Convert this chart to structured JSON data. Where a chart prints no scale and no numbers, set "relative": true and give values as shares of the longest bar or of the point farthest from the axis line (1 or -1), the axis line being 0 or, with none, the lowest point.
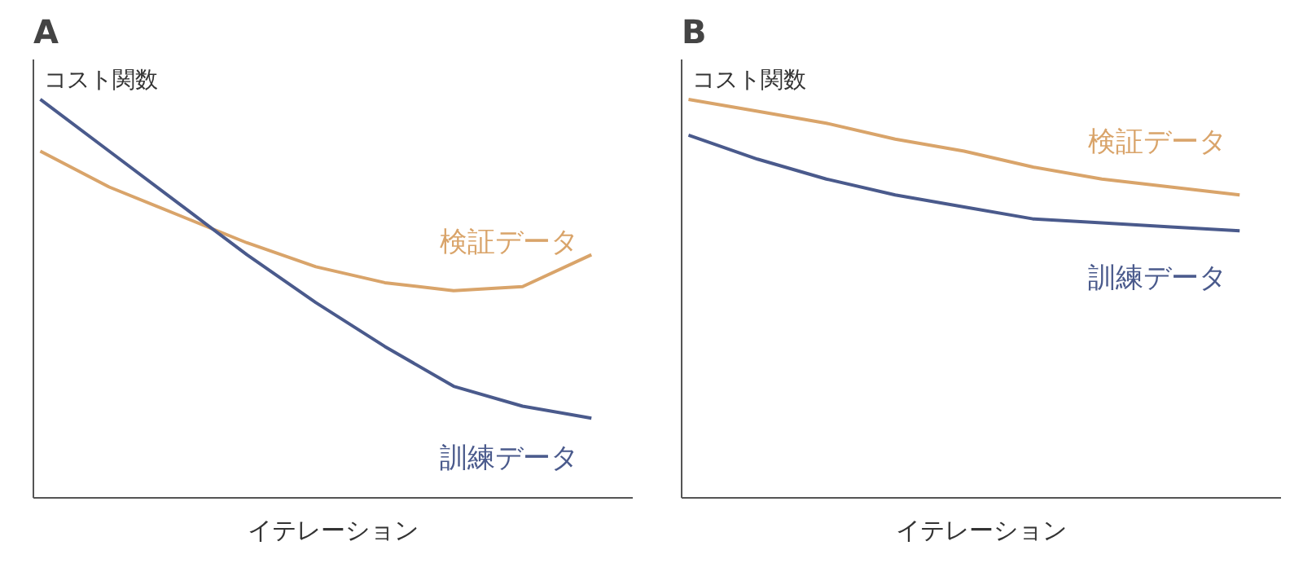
{
  "chart_data": [
    {
      "type": "line",
      "title": "A",
      "ylabel": "コスト関数",
      "xlabel": "イテレーション",
      "relative": true,
      "legend": false,
      "grid": false,
      "categories": [
        null,
        null,
        null,
        null,
        null,
        null,
        null,
        null,
        null
      ],
      "series": [
        {
          "name": "検証データ",
          "color": "#d9a46a",
          "values": [
            0.87,
            0.78,
            0.71,
            0.64,
            0.58,
            0.54,
            0.52,
            0.53,
            0.61
          ]
        },
        {
          "name": "訓練データ",
          "color": "#4a5a8c",
          "values": [
            1,
            0.87,
            0.74,
            0.61,
            0.49,
            0.38,
            0.28,
            0.23,
            0.2
          ]
        }
      ]
    },
    {
      "type": "line",
      "title": "B",
      "ylabel": "コスト関数",
      "xlabel": "イテレーション",
      "relative": true,
      "legend": false,
      "grid": false,
      "categories": [
        null,
        null,
        null,
        null,
        null,
        null,
        null,
        null,
        null
      ],
      "series": [
        {
          "name": "検証データ",
          "color": "#d9a46a",
          "values": [
            1,
            0.97,
            0.94,
            0.9,
            0.87,
            0.83,
            0.8,
            0.78,
            0.76
          ]
        },
        {
          "name": "訓練データ",
          "color": "#4a5a8c",
          "values": [
            0.91,
            0.85,
            0.8,
            0.76,
            0.73,
            0.7,
            0.69,
            0.68,
            0.67
          ]
        }
      ]
    }
  ]
}
